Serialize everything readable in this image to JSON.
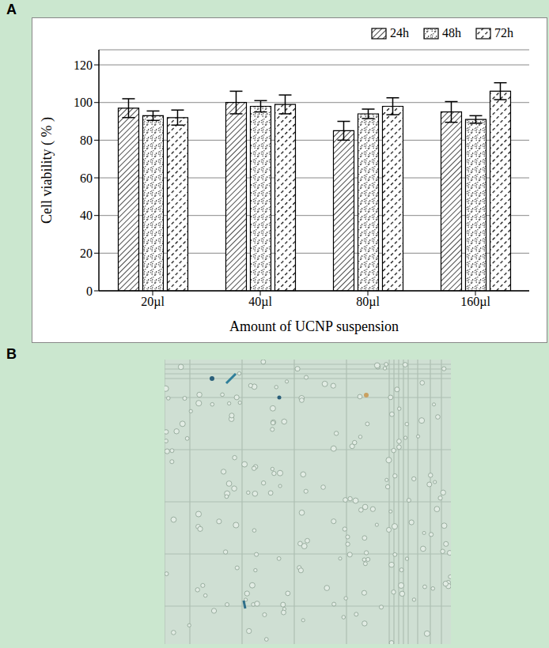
{
  "panel_labels": [
    "A",
    "B"
  ],
  "chart_data": {
    "type": "bar",
    "x_label": "Amount of UCNP suspension",
    "y_label": "Cell viability ( % )",
    "categories": [
      "20µl",
      "40µl",
      "80µl",
      "160µl"
    ],
    "series": [
      {
        "name": "24h",
        "color": "#000000",
        "values": [
          97,
          100,
          85,
          95
        ],
        "errors": [
          5,
          6,
          5,
          5.5
        ]
      },
      {
        "name": "48h",
        "color": "#000000",
        "values": [
          93,
          98,
          94,
          91
        ],
        "errors": [
          2.5,
          3,
          2.5,
          2
        ]
      },
      {
        "name": "72h",
        "color": "#000000",
        "values": [
          92,
          99,
          98,
          106
        ],
        "errors": [
          4,
          5,
          4.5,
          4.5
        ]
      }
    ],
    "ylim": [
      0,
      128
    ],
    "yticks": [
      0,
      20,
      40,
      60,
      80,
      100,
      120
    ],
    "grid": true,
    "legend": "top-right"
  }
}
